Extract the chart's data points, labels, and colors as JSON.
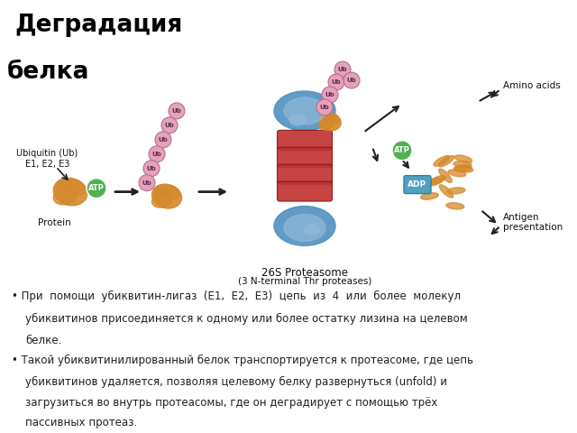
{
  "title_line1": "Деградация",
  "title_line2": "белка",
  "title_bg": "#FFFF00",
  "title_fg": "#000000",
  "diagram_bg": "#C8D8E8",
  "slide_bg": "#FFFFFF",
  "diagram_caption1": "26S Proteasome",
  "diagram_caption2": "(3 N-terminal Thr proteases)",
  "bullet1_line1": "При  помощи  убиквитин-лигаз  (E1,  E2,  E3)  цепь  из  4  или  более  молекул",
  "bullet1_line2": "убиквитинов присоединяется к одному или более остатку лизина на целевом",
  "bullet1_line3": "белке.",
  "bullet2_line1": "Такой убиквитинилированный белок транспортируется к протеасоме, где цепь",
  "bullet2_line2": "убиквитинов удаляется, позволяя целевому белку развернуться (unfold) и",
  "bullet2_line3": "загрузиться во внутрь протеасомы, где он деградирует с помощью трёх",
  "bullet2_line4": "пассивных протеаз.",
  "colors": {
    "pink_circle": "#E8A0B8",
    "pink_circle_border": "#B07090",
    "orange_protein": "#D4882A",
    "blue_proteasome": "#5090C0",
    "blue_cap_inner": "#90B8D8",
    "red_barrel": "#C03030",
    "red_barrel_border": "#901010",
    "green_atp": "#50B050",
    "teal_adp": "#50A0C0",
    "arrow": "#202020"
  }
}
